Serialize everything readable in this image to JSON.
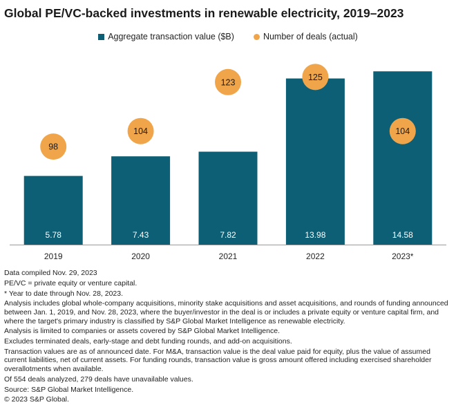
{
  "chart_data": {
    "type": "bar",
    "title": "Global PE/VC-backed investments in renewable electricity, 2019–2023",
    "categories": [
      "2019",
      "2020",
      "2021",
      "2022",
      "2023*"
    ],
    "series": [
      {
        "name": "Aggregate transaction value ($B)",
        "kind": "bar",
        "color": "#0d5f75",
        "values": [
          5.78,
          7.43,
          7.82,
          13.98,
          14.58
        ],
        "labels": [
          "5.78",
          "7.43",
          "7.82",
          "13.98",
          "14.58"
        ]
      },
      {
        "name": "Number of deals (actual)",
        "kind": "dot",
        "color": "#f0a54a",
        "values": [
          98,
          104,
          123,
          125,
          104
        ],
        "labels": [
          "98",
          "104",
          "123",
          "125",
          "104"
        ]
      }
    ],
    "bar_axis_max": 15.0,
    "dot_axis_range": [
      60,
      135
    ],
    "gridlines": false,
    "legend_position": "top-center"
  },
  "notes": [
    "Data compiled Nov. 29, 2023",
    "PE/VC = private equity or venture capital.",
    "* Year to date through Nov. 28, 2023.",
    "Analysis includes global whole-company acquisitions, minority stake acquisitions and asset acquisitions, and rounds of funding announced between Jan. 1, 2019, and Nov. 28, 2023, where the buyer/investor in the deal is or includes a private equity or venture capital firm, and where the target's primary industry is classified  by S&P Global Market Intelligence  as renewable electricity.",
    "Analysis is limited to companies or assets covered by S&P Global Market Intelligence.",
    "Excludes terminated deals, early-stage and debt funding rounds,  and add-on acquisitions.",
    "Transaction values are as of announced date. For M&A, transaction value is the deal value paid for equity, plus the value of assumed current liabilities, net of current assets. For funding rounds, transaction value is gross amount offered including exercised shareholder overallotments when available.",
    "Of 554 deals analyzed, 279 deals have unavailable values.",
    "Source: S&P Global Market Intelligence.",
    "© 2023 S&P Global."
  ]
}
